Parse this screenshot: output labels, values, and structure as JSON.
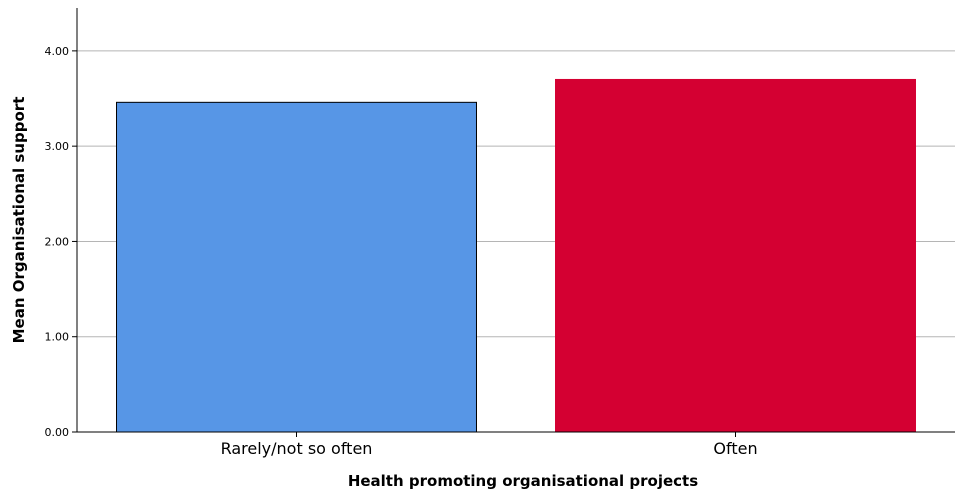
{
  "chart_data": {
    "type": "bar",
    "categories": [
      "Rarely/not so often",
      "Often"
    ],
    "values": [
      3.46,
      3.7
    ],
    "colors": [
      "#5796e6",
      "#d40032"
    ],
    "xlabel": "Health promoting organisational projects",
    "ylabel": "Mean Organisational support",
    "ylim": [
      0,
      4.45
    ],
    "yticks": [
      "0.00",
      "1.00",
      "2.00",
      "3.00",
      "4.00"
    ],
    "grid": true
  }
}
